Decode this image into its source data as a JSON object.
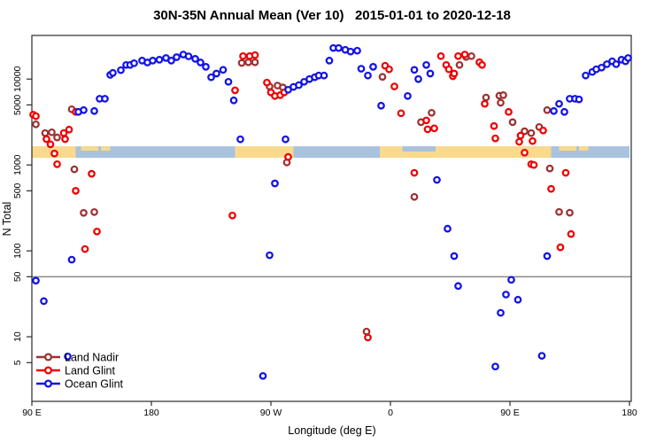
{
  "chart_data": {
    "type": "scatter",
    "title": "30N-35N Annual Mean (Ver 10)   2015-01-01 to 2020-12-18",
    "xlabel": "Longitude (deg E)",
    "ylabel": "N Total",
    "x_scale": "linear-wrapped-longitude",
    "y_scale": "log",
    "xlim": [
      90,
      540
    ],
    "ylim": [
      1.77,
      32200
    ],
    "grid": "off",
    "x_ticks": [
      {
        "value": 90,
        "label": "90 E"
      },
      {
        "value": 180,
        "label": "180"
      },
      {
        "value": 270,
        "label": "90 W"
      },
      {
        "value": 360,
        "label": "0"
      },
      {
        "value": 450,
        "label": "90 E"
      },
      {
        "value": 540,
        "label": "180"
      }
    ],
    "y_ticks": [
      {
        "value": 5,
        "label": "5"
      },
      {
        "value": 10,
        "label": "10"
      },
      {
        "value": 50,
        "label": "50"
      },
      {
        "value": 100,
        "label": "100"
      },
      {
        "value": 500,
        "label": "500"
      },
      {
        "value": 1000,
        "label": "1000"
      },
      {
        "value": 5000,
        "label": "5000"
      },
      {
        "value": 10000,
        "label": "10000"
      }
    ],
    "reference_line": {
      "y": 50,
      "color": "#8a8a8a"
    },
    "geo_band": {
      "description": "30N-35N land/ocean strip",
      "value_top": 1650,
      "value_bottom": 1210,
      "sea_color": "#a9c2de",
      "land_color": "#f9d98e",
      "segments": [
        {
          "type": "land",
          "from": 90,
          "to": 123
        },
        {
          "type": "sea",
          "from": 123,
          "to": 243
        },
        {
          "type": "land",
          "from": 243,
          "to": 287
        },
        {
          "type": "sea",
          "from": 287,
          "to": 352
        },
        {
          "type": "land",
          "from": 352,
          "to": 369
        },
        {
          "type": "coast",
          "from": 369,
          "to": 394
        },
        {
          "type": "land",
          "from": 394,
          "to": 481
        },
        {
          "type": "sea",
          "from": 481,
          "to": 540
        }
      ],
      "islands": [
        [
          127,
          140
        ],
        [
          142,
          149
        ],
        [
          487,
          500
        ],
        [
          502,
          509
        ]
      ]
    },
    "legend": {
      "position": "bottom-left",
      "entries": [
        "Land Nadir",
        "Land Glint",
        "Ocean Glint"
      ]
    },
    "series": [
      {
        "name": "Land Nadir",
        "color": "#9e3232",
        "points": [
          [
            93,
            2970
          ],
          [
            100,
            2350
          ],
          [
            105,
            2400
          ],
          [
            109,
            2090
          ],
          [
            120,
            4450
          ],
          [
            122,
            890
          ],
          [
            129,
            277
          ],
          [
            137,
            283
          ],
          [
            248,
            15400
          ],
          [
            253,
            15700
          ],
          [
            258,
            15700
          ],
          [
            269,
            8200
          ],
          [
            275,
            8400
          ],
          [
            279,
            8000
          ],
          [
            282,
            1070
          ],
          [
            342,
            11.5
          ],
          [
            354,
            10600
          ],
          [
            378,
            425
          ],
          [
            383,
            3150
          ],
          [
            391,
            4050
          ],
          [
            412,
            14600
          ],
          [
            417,
            18100
          ],
          [
            421,
            18500
          ],
          [
            432,
            6100
          ],
          [
            442,
            6400
          ],
          [
            445,
            6500
          ],
          [
            443,
            5300
          ],
          [
            452,
            3150
          ],
          [
            461,
            2470
          ],
          [
            466,
            2350
          ],
          [
            472,
            2770
          ],
          [
            478,
            4350
          ],
          [
            480,
            910
          ],
          [
            487,
            284
          ],
          [
            495,
            278
          ]
        ]
      },
      {
        "name": "Land Glint",
        "color": "#f00000",
        "points": [
          [
            91,
            3850
          ],
          [
            93,
            3700
          ],
          [
            101,
            2000
          ],
          [
            104,
            1740
          ],
          [
            107,
            1360
          ],
          [
            109,
            1020
          ],
          [
            114,
            2350
          ],
          [
            115,
            2000
          ],
          [
            118,
            2580
          ],
          [
            123,
            4150
          ],
          [
            123,
            500
          ],
          [
            130,
            105
          ],
          [
            135,
            790
          ],
          [
            139,
            168
          ],
          [
            241,
            258
          ],
          [
            243,
            7400
          ],
          [
            249,
            18500
          ],
          [
            254,
            18500
          ],
          [
            258,
            19000
          ],
          [
            267,
            9100
          ],
          [
            270,
            7000
          ],
          [
            273,
            6350
          ],
          [
            277,
            6500
          ],
          [
            280,
            7000
          ],
          [
            283,
            1240
          ],
          [
            343,
            9.8
          ],
          [
            356,
            14300
          ],
          [
            359,
            13000
          ],
          [
            363,
            8200
          ],
          [
            368,
            4000
          ],
          [
            378,
            810
          ],
          [
            387,
            3300
          ],
          [
            388,
            2600
          ],
          [
            393,
            2670
          ],
          [
            398,
            18500
          ],
          [
            402,
            14600
          ],
          [
            404,
            13000
          ],
          [
            407,
            10800
          ],
          [
            408,
            11600
          ],
          [
            411,
            18500
          ],
          [
            416,
            19300
          ],
          [
            427,
            15700
          ],
          [
            429,
            14600
          ],
          [
            431,
            5150
          ],
          [
            438,
            2840
          ],
          [
            439,
            2040
          ],
          [
            449,
            4150
          ],
          [
            457,
            1860
          ],
          [
            458,
            2200
          ],
          [
            461,
            1390
          ],
          [
            466,
            1020
          ],
          [
            467,
            1900
          ],
          [
            468,
            1000
          ],
          [
            475,
            2520
          ],
          [
            481,
            527
          ],
          [
            488,
            110
          ],
          [
            492,
            810
          ],
          [
            496,
            157
          ]
        ]
      },
      {
        "name": "Ocean Glint",
        "color": "#1212e6",
        "points": [
          [
            93,
            45
          ],
          [
            99,
            26
          ],
          [
            117,
            5.9
          ],
          [
            120,
            79
          ],
          [
            125,
            4150
          ],
          [
            129,
            4350
          ],
          [
            137,
            4250
          ],
          [
            141,
            5900
          ],
          [
            145,
            5900
          ],
          [
            149,
            11200
          ],
          [
            151,
            11800
          ],
          [
            157,
            12700
          ],
          [
            161,
            14600
          ],
          [
            164,
            14600
          ],
          [
            167,
            15300
          ],
          [
            173,
            16400
          ],
          [
            177,
            15600
          ],
          [
            181,
            16400
          ],
          [
            186,
            16800
          ],
          [
            191,
            17600
          ],
          [
            195,
            16400
          ],
          [
            199,
            18000
          ],
          [
            204,
            19300
          ],
          [
            208,
            18400
          ],
          [
            213,
            17200
          ],
          [
            217,
            15600
          ],
          [
            221,
            13900
          ],
          [
            225,
            10500
          ],
          [
            229,
            11600
          ],
          [
            234,
            12800
          ],
          [
            238,
            9300
          ],
          [
            242,
            5650
          ],
          [
            247,
            1990
          ],
          [
            264,
            3.5
          ],
          [
            269,
            89
          ],
          [
            273,
            610
          ],
          [
            281,
            1990
          ],
          [
            283,
            7500
          ],
          [
            287,
            8100
          ],
          [
            291,
            8500
          ],
          [
            295,
            9300
          ],
          [
            299,
            10000
          ],
          [
            303,
            10500
          ],
          [
            306,
            11000
          ],
          [
            310,
            11000
          ],
          [
            314,
            16400
          ],
          [
            317,
            23000
          ],
          [
            321,
            23000
          ],
          [
            326,
            21900
          ],
          [
            330,
            20900
          ],
          [
            335,
            21400
          ],
          [
            338,
            13200
          ],
          [
            343,
            11000
          ],
          [
            347,
            13900
          ],
          [
            353,
            4900
          ],
          [
            373,
            6350
          ],
          [
            378,
            12800
          ],
          [
            381,
            10000
          ],
          [
            387,
            14600
          ],
          [
            390,
            11600
          ],
          [
            395,
            670
          ],
          [
            403,
            181
          ],
          [
            408,
            87
          ],
          [
            411,
            39
          ],
          [
            439,
            4.5
          ],
          [
            443,
            19
          ],
          [
            447,
            31
          ],
          [
            451,
            46
          ],
          [
            456,
            27
          ],
          [
            474,
            6
          ],
          [
            478,
            87
          ],
          [
            483,
            4250
          ],
          [
            487,
            5150
          ],
          [
            491,
            4150
          ],
          [
            495,
            5900
          ],
          [
            499,
            5900
          ],
          [
            502,
            5800
          ],
          [
            507,
            11000
          ],
          [
            512,
            12100
          ],
          [
            515,
            13000
          ],
          [
            519,
            13600
          ],
          [
            523,
            14900
          ],
          [
            527,
            16100
          ],
          [
            530,
            14900
          ],
          [
            534,
            16800
          ],
          [
            537,
            16100
          ],
          [
            539,
            17600
          ]
        ]
      }
    ]
  }
}
